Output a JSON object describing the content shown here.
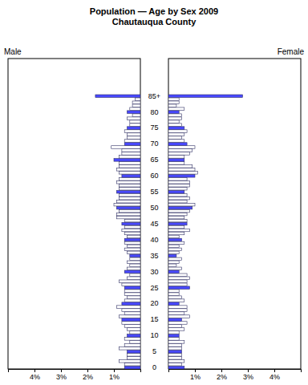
{
  "chart_data": {
    "type": "pyramid",
    "orientation": "horizontal",
    "title": "Population — Age by Sex 2009",
    "subtitle": "Chautauqua County",
    "categories": [
      "0",
      null,
      null,
      null,
      null,
      "5",
      null,
      null,
      null,
      null,
      "10",
      null,
      null,
      null,
      null,
      "15",
      null,
      null,
      null,
      null,
      "20",
      null,
      null,
      null,
      null,
      "25",
      null,
      null,
      null,
      null,
      "30",
      null,
      null,
      null,
      null,
      "35",
      null,
      null,
      null,
      null,
      "40",
      null,
      null,
      null,
      null,
      "45",
      null,
      null,
      null,
      null,
      "50",
      null,
      null,
      null,
      null,
      "55",
      null,
      null,
      null,
      null,
      "60",
      null,
      null,
      null,
      null,
      "65",
      null,
      null,
      null,
      null,
      "70",
      null,
      null,
      null,
      null,
      "75",
      null,
      null,
      null,
      null,
      "80",
      null,
      null,
      null,
      null,
      "85+"
    ],
    "series": [
      {
        "name": "Male",
        "values": [
          0.6,
          0.6,
          0.8,
          0.5,
          0.5,
          0.5,
          0.8,
          0.6,
          0.4,
          0.6,
          0.5,
          0.4,
          0.5,
          0.6,
          0.7,
          0.7,
          0.8,
          0.6,
          0.7,
          0.9,
          0.7,
          0.6,
          0.5,
          0.6,
          0.6,
          0.6,
          0.7,
          0.8,
          0.5,
          0.4,
          0.6,
          0.5,
          0.4,
          0.5,
          0.4,
          0.4,
          0.5,
          0.6,
          0.5,
          0.6,
          0.6,
          0.5,
          0.6,
          0.7,
          0.6,
          0.7,
          0.6,
          0.9,
          0.9,
          0.8,
          0.9,
          1.0,
          0.9,
          0.8,
          0.8,
          0.9,
          0.8,
          0.8,
          0.9,
          0.8,
          0.7,
          0.8,
          0.9,
          0.8,
          0.8,
          1.0,
          0.8,
          0.7,
          0.7,
          1.1,
          0.6,
          0.6,
          0.5,
          0.5,
          0.6,
          0.5,
          0.4,
          0.4,
          0.5,
          0.3,
          0.5,
          0.4,
          0.3,
          0.3,
          0.2,
          1.7
        ]
      },
      {
        "name": "Female",
        "values": [
          0.6,
          0.5,
          0.6,
          0.5,
          0.5,
          0.5,
          0.5,
          0.5,
          0.6,
          0.4,
          0.4,
          0.4,
          0.6,
          0.5,
          0.7,
          0.5,
          0.8,
          0.6,
          0.7,
          0.7,
          0.4,
          0.6,
          0.5,
          0.4,
          0.4,
          0.8,
          0.7,
          0.7,
          0.8,
          0.7,
          0.4,
          0.5,
          0.3,
          0.4,
          0.5,
          0.3,
          0.4,
          0.5,
          0.4,
          0.6,
          0.5,
          0.4,
          0.6,
          0.8,
          0.6,
          0.7,
          0.7,
          0.6,
          0.7,
          0.8,
          0.9,
          1.0,
          0.7,
          0.8,
          0.7,
          0.6,
          0.7,
          0.8,
          0.8,
          0.7,
          1.0,
          1.1,
          1.0,
          0.9,
          0.6,
          0.6,
          0.6,
          0.8,
          0.9,
          1.0,
          0.7,
          0.6,
          0.5,
          0.6,
          0.7,
          0.6,
          0.5,
          0.4,
          0.5,
          0.5,
          0.4,
          0.6,
          0.3,
          0.4,
          0.4,
          2.8
        ]
      }
    ],
    "colors": [
      "#4848ff",
      "#ffffff",
      "#ffffff",
      "#ffffff",
      "#ffffff",
      "#4848ff",
      "#ffffff",
      "#ffffff",
      "#ffffff",
      "#ffffff",
      "#4848ff",
      "#ffffff",
      "#ffffff",
      "#ffffff",
      "#ffffff",
      "#4848ff",
      "#ffffff",
      "#ffffff",
      "#ffffff",
      "#ffffff",
      "#4848ff",
      "#ffffff",
      "#ffffff",
      "#ffffff",
      "#ffffff",
      "#4848ff",
      "#ffffff",
      "#ffffff",
      "#ffffff",
      "#ffffff",
      "#4848ff",
      "#ffffff",
      "#ffffff",
      "#ffffff",
      "#ffffff",
      "#4848ff",
      "#ffffff",
      "#ffffff",
      "#ffffff",
      "#ffffff",
      "#4848ff",
      "#ffffff",
      "#ffffff",
      "#ffffff",
      "#ffffff",
      "#4848ff",
      "#ffffff",
      "#ffffff",
      "#ffffff",
      "#ffffff",
      "#4848ff",
      "#ffffff",
      "#ffffff",
      "#ffffff",
      "#ffffff",
      "#4848ff",
      "#ffffff",
      "#ffffff",
      "#ffffff",
      "#ffffff",
      "#4848ff",
      "#ffffff",
      "#ffffff",
      "#ffffff",
      "#ffffff",
      "#4848ff",
      "#ffffff",
      "#ffffff",
      "#ffffff",
      "#ffffff",
      "#4848ff",
      "#ffffff",
      "#ffffff",
      "#ffffff",
      "#ffffff",
      "#4848ff",
      "#ffffff",
      "#ffffff",
      "#ffffff",
      "#ffffff",
      "#4848ff",
      "#ffffff",
      "#ffffff",
      "#ffffff",
      "#ffffff",
      "#4848ff"
    ],
    "xlim": [
      0,
      5
    ],
    "xticks": [
      {
        "value": 1,
        "label": "1%"
      },
      {
        "value": 2,
        "label": "2%"
      },
      {
        "value": 3,
        "label": "3%"
      },
      {
        "value": 4,
        "label": "4%"
      }
    ]
  }
}
